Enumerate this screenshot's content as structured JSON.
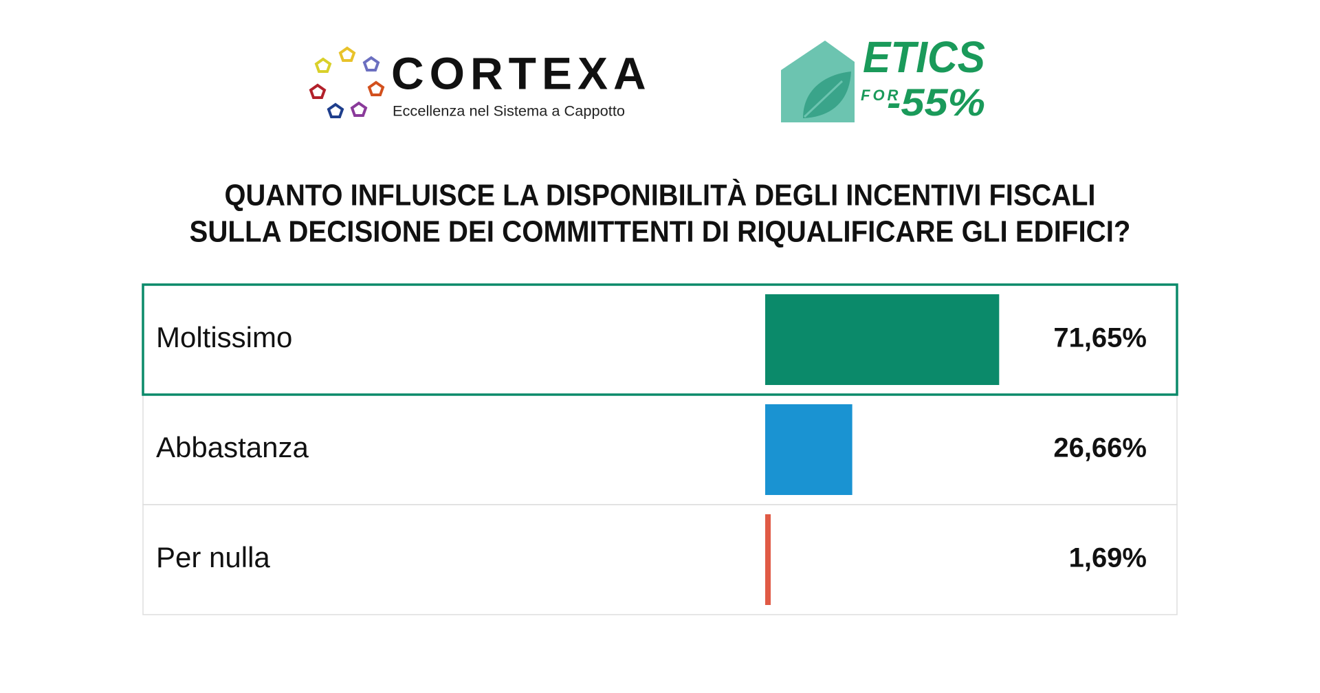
{
  "header": {
    "cortexa": "CORTEXA",
    "cortexa_tagline": "Eccellenza nel Sistema a Cappotto",
    "etics": "ETICS",
    "etics_for": "FOR",
    "etics_target": "-55%"
  },
  "chart_data": {
    "type": "bar",
    "orientation": "horizontal",
    "title": [
      "QUANTO INFLUISCE LA DISPONIBILITÀ DEGLI INCENTIVI FISCALI",
      "SULLA DECISIONE DEI COMMITTENTI DI RIQUALIFICARE GLI EDIFICI?"
    ],
    "categories": [
      "Moltissimo",
      "Abbastanza",
      "Per nulla"
    ],
    "values": [
      71.65,
      26.66,
      1.69
    ],
    "value_labels": [
      "71,65%",
      "26,66%",
      "1,69%"
    ],
    "colors": [
      "#0b8a6a",
      "#1a93d2",
      "#e05a45"
    ]
  }
}
